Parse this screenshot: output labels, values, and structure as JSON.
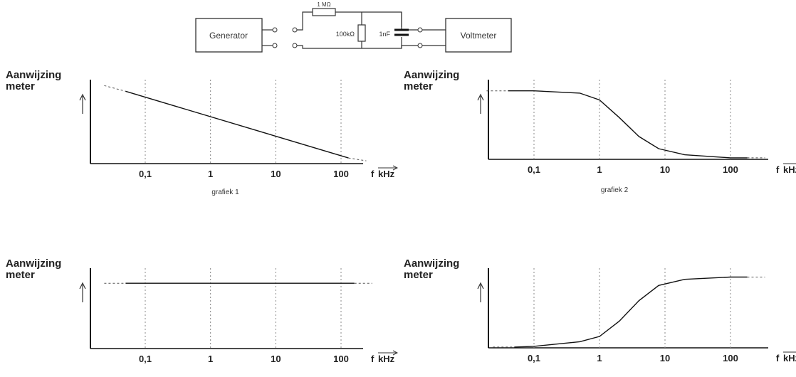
{
  "circuit": {
    "generator_label": "Generator",
    "voltmeter_label": "Voltmeter",
    "series_resistor_label": "1 MΩ",
    "shunt_resistor_label": "100kΩ",
    "capacitor_label": "1nF"
  },
  "chart_data": [
    {
      "type": "line",
      "ylabel_line1": "Aanwijzing",
      "ylabel_line2": "meter",
      "xlabel_f": "f",
      "xlabel_unit": "kHz",
      "caption": "grafiek 1",
      "x_scale": "log",
      "xlim": [
        0.025,
        200
      ],
      "ylim": [
        0,
        1
      ],
      "ticks": [
        "0,1",
        "1",
        "10",
        "100"
      ],
      "tick_values": [
        0.1,
        1,
        10,
        100
      ],
      "series": [
        {
          "points": [
            [
              0.05,
              0.9
            ],
            [
              130,
              0.07
            ]
          ],
          "dashed_start": [
            0.05,
            0.9
          ],
          "dashed_end": [
            130,
            0.07
          ]
        }
      ]
    },
    {
      "type": "line",
      "ylabel_line1": "Aanwijzing",
      "ylabel_line2": "meter",
      "xlabel_f": "f",
      "xlabel_unit": "kHz",
      "caption": "grafiek 2",
      "x_scale": "log",
      "xlim": [
        0.025,
        200
      ],
      "ylim": [
        0,
        1
      ],
      "ticks": [
        "0,1",
        "1",
        "10",
        "100"
      ],
      "tick_values": [
        0.1,
        1,
        10,
        100
      ],
      "series": [
        {
          "points": [
            [
              0.04,
              0.9
            ],
            [
              0.1,
              0.9
            ],
            [
              0.5,
              0.87
            ],
            [
              1,
              0.78
            ],
            [
              2,
              0.55
            ],
            [
              4,
              0.3
            ],
            [
              8,
              0.14
            ],
            [
              20,
              0.06
            ],
            [
              100,
              0.02
            ],
            [
              180,
              0.02
            ]
          ]
        }
      ]
    },
    {
      "type": "line",
      "ylabel_line1": "Aanwijzing",
      "ylabel_line2": "meter",
      "xlabel_f": "f",
      "xlabel_unit": "kHz",
      "caption": "",
      "x_scale": "log",
      "xlim": [
        0.025,
        200
      ],
      "ylim": [
        0,
        1
      ],
      "ticks": [
        "0,1",
        "1",
        "10",
        "100"
      ],
      "tick_values": [
        0.1,
        1,
        10,
        100
      ],
      "series": [
        {
          "points": [
            [
              0.05,
              0.85
            ],
            [
              160,
              0.85
            ]
          ]
        }
      ]
    },
    {
      "type": "line",
      "ylabel_line1": "Aanwijzing",
      "ylabel_line2": "meter",
      "xlabel_f": "f",
      "xlabel_unit": "kHz",
      "caption": "",
      "x_scale": "log",
      "xlim": [
        0.025,
        200
      ],
      "ylim": [
        0,
        1
      ],
      "ticks": [
        "0,1",
        "1",
        "10",
        "100"
      ],
      "tick_values": [
        0.1,
        1,
        10,
        100
      ],
      "series": [
        {
          "points": [
            [
              0.05,
              0.01
            ],
            [
              0.1,
              0.02
            ],
            [
              0.5,
              0.08
            ],
            [
              1,
              0.15
            ],
            [
              2,
              0.35
            ],
            [
              4,
              0.62
            ],
            [
              8,
              0.82
            ],
            [
              20,
              0.9
            ],
            [
              100,
              0.93
            ],
            [
              180,
              0.93
            ]
          ]
        }
      ]
    }
  ]
}
